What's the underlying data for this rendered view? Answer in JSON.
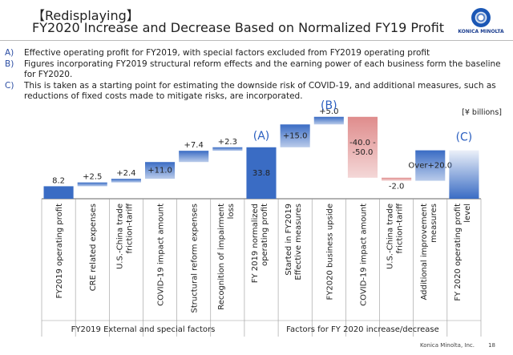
{
  "header": {
    "title_line1": "【Redisplaying】",
    "title_line2": "FY2020  Increase and Decrease Based on Normalized FY19 Profit",
    "logo": "KONICA MINOLTA"
  },
  "bullets": [
    {
      "marker": "A)",
      "text": "Effective operating profit for FY2019, with special factors excluded from FY2019 operating profit"
    },
    {
      "marker": "B)",
      "text": "Figures incorporating FY2019 structural reform effects and the earning power of each business form the baseline for FY2020."
    },
    {
      "marker": "C)",
      "text": "This is taken as a starting point for estimating the downside risk of COVID-19, and additional measures, such as reductions of fixed costs made to mitigate risks, are incorporated."
    }
  ],
  "chart_data": {
    "type": "waterfall",
    "unit": "[¥ billions]",
    "categories": [
      "FY2019 operating profit",
      "CRE related expenses",
      "U.S.-China trade friction-tariff",
      "COVID-19 impact amount",
      "Structural reform expenses",
      "Recognition of impairment loss",
      "FY 2019 normalized operating profit",
      "Started in FY2019 Effective measures",
      "FY2020 business upside",
      "COVID-19 impact amount",
      "U.S.-China trade friction-tariff",
      "Additional improvement measures",
      "FY 2020 operating profit level"
    ],
    "bar_kinds": [
      "total",
      "delta",
      "delta",
      "delta",
      "delta",
      "delta",
      "total",
      "delta",
      "delta",
      "delta",
      "delta",
      "delta",
      "total"
    ],
    "values": [
      8.2,
      2.5,
      2.4,
      11.0,
      7.4,
      2.3,
      33.8,
      15.0,
      5.0,
      -40.0,
      -2.0,
      20.0,
      null
    ],
    "value_labels": [
      "8.2",
      "+2.5",
      "+2.4",
      "+11.0",
      "+7.4",
      "+2.3",
      "33.8",
      "+15.0",
      "+5.0",
      "-40.0 - -50.0",
      "-2.0",
      "Over+20.0",
      null
    ],
    "colors": {
      "total": "#3a6cc4",
      "increase": "#3a6cc4",
      "decrease": "#df8c8c"
    },
    "annotations": [
      {
        "index": 6,
        "text": "(A)"
      },
      {
        "index": 8,
        "text": "(B)"
      },
      {
        "index": 12,
        "text": "(C)"
      }
    ],
    "groups": [
      {
        "start": 0,
        "end": 5,
        "label": "FY2019 External and special factors"
      },
      {
        "start": 6,
        "end": 12,
        "label": "Factors for FY 2020 increase/decrease"
      }
    ]
  },
  "footer": {
    "company": "Konica Minolta, Inc.",
    "page": "18"
  }
}
